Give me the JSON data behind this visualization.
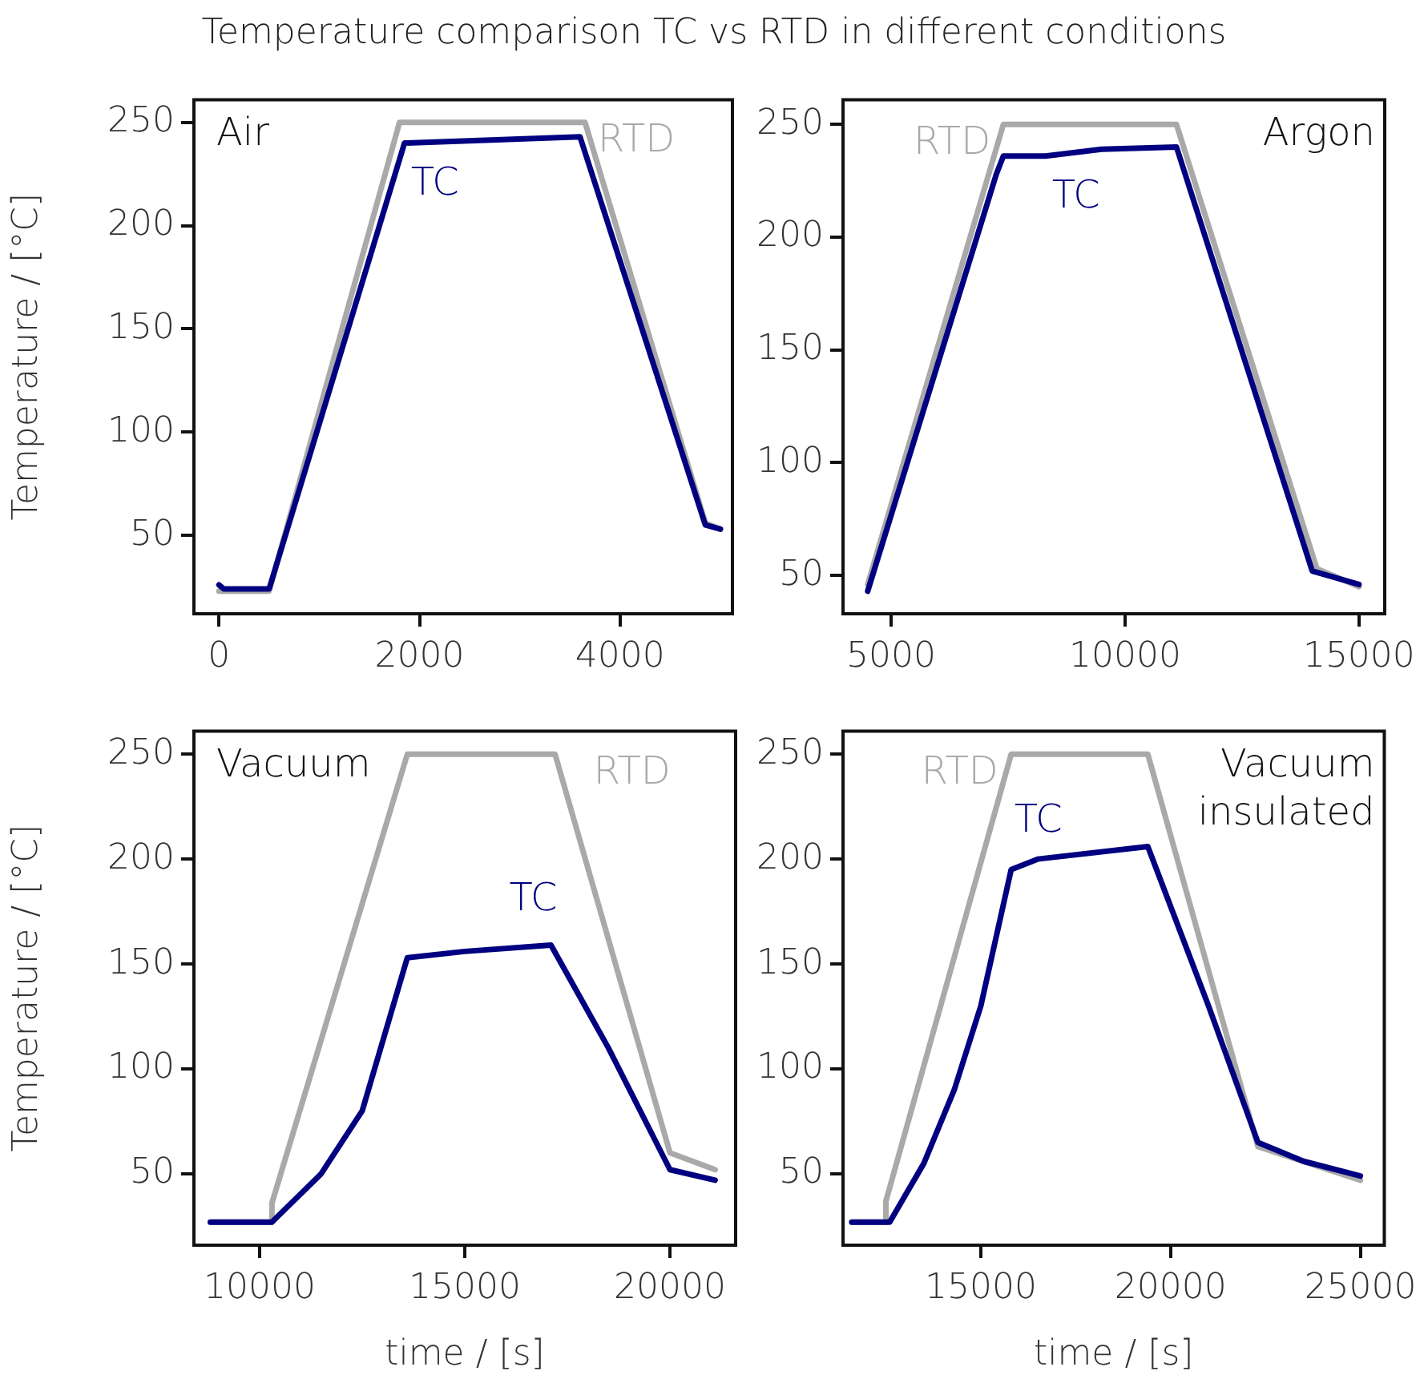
{
  "chart_data": [
    {
      "type": "line",
      "title": "Temperature comparison TC vs RTD in different conditions",
      "ylabel": "Temperature / [°C]",
      "annotations": [
        "Air"
      ],
      "xlim": [
        -250,
        5120
      ],
      "xticks": [
        0,
        2000,
        4000
      ],
      "ylim": [
        12,
        261
      ],
      "yticks": [
        50,
        100,
        150,
        200,
        250
      ],
      "legend": false,
      "series": [
        {
          "name": "TC",
          "color": "#000080",
          "x": [
            0,
            50,
            500,
            1850,
            3600,
            4850,
            5000
          ],
          "values": [
            26,
            24,
            24,
            240,
            243,
            55,
            53
          ]
        },
        {
          "name": "RTD",
          "color": "#a9a9a9",
          "x": [
            0,
            500,
            1800,
            3650,
            4850,
            5000
          ],
          "values": [
            23,
            23,
            250,
            250,
            56,
            53
          ]
        }
      ]
    },
    {
      "type": "line",
      "annotations": [
        "Argon"
      ],
      "xlim": [
        3973,
        15550
      ],
      "xticks": [
        5000,
        10000,
        15000
      ],
      "ylim": [
        33,
        261
      ],
      "yticks": [
        50,
        100,
        150,
        200,
        250
      ],
      "legend": false,
      "series": [
        {
          "name": "TC",
          "color": "#000080",
          "x": [
            4500,
            7250,
            7400,
            8300,
            9500,
            11100,
            14000,
            15000
          ],
          "values": [
            43,
            228,
            236,
            236,
            239,
            240,
            52,
            46
          ]
        },
        {
          "name": "RTD",
          "color": "#a9a9a9",
          "x": [
            4500,
            7400,
            11100,
            14100,
            15000
          ],
          "values": [
            46,
            250,
            250,
            53,
            45
          ]
        }
      ]
    },
    {
      "type": "line",
      "xlabel": "time / [s]",
      "ylabel": "Temperature / [°C]",
      "annotations": [
        "Vacuum"
      ],
      "xlim": [
        8400,
        21600
      ],
      "xticks": [
        10000,
        15000,
        20000
      ],
      "ylim": [
        16,
        261
      ],
      "yticks": [
        50,
        100,
        150,
        200,
        250
      ],
      "legend": false,
      "series": [
        {
          "name": "TC",
          "color": "#000080",
          "x": [
            8800,
            10300,
            11500,
            12500,
            13600,
            15000,
            17100,
            18500,
            20000,
            21100
          ],
          "values": [
            27,
            27,
            50,
            80,
            153,
            156,
            159,
            110,
            52,
            47
          ]
        },
        {
          "name": "RTD",
          "color": "#a9a9a9",
          "x": [
            8800,
            10300,
            10300,
            13600,
            17200,
            20000,
            21100
          ],
          "values": [
            27,
            27,
            36,
            250,
            250,
            60,
            52
          ]
        }
      ]
    },
    {
      "type": "line",
      "xlabel": "time / [s]",
      "annotations": [
        "Vacuum\ninsulated"
      ],
      "xlim": [
        11370,
        25630
      ],
      "xticks": [
        15000,
        20000,
        25000
      ],
      "ylim": [
        16,
        261
      ],
      "yticks": [
        50,
        100,
        150,
        200,
        250
      ],
      "legend": false,
      "series": [
        {
          "name": "TC",
          "color": "#000080",
          "x": [
            11600,
            12600,
            13500,
            14300,
            15000,
            15800,
            16500,
            19400,
            21000,
            22300,
            23500,
            25000
          ],
          "values": [
            27,
            27,
            55,
            90,
            130,
            195,
            200,
            206,
            130,
            65,
            56,
            49
          ]
        },
        {
          "name": "RTD",
          "color": "#a9a9a9",
          "x": [
            11600,
            12500,
            12500,
            15800,
            19400,
            22300,
            25000
          ],
          "values": [
            27,
            27,
            37,
            250,
            250,
            63,
            47
          ]
        }
      ]
    }
  ]
}
